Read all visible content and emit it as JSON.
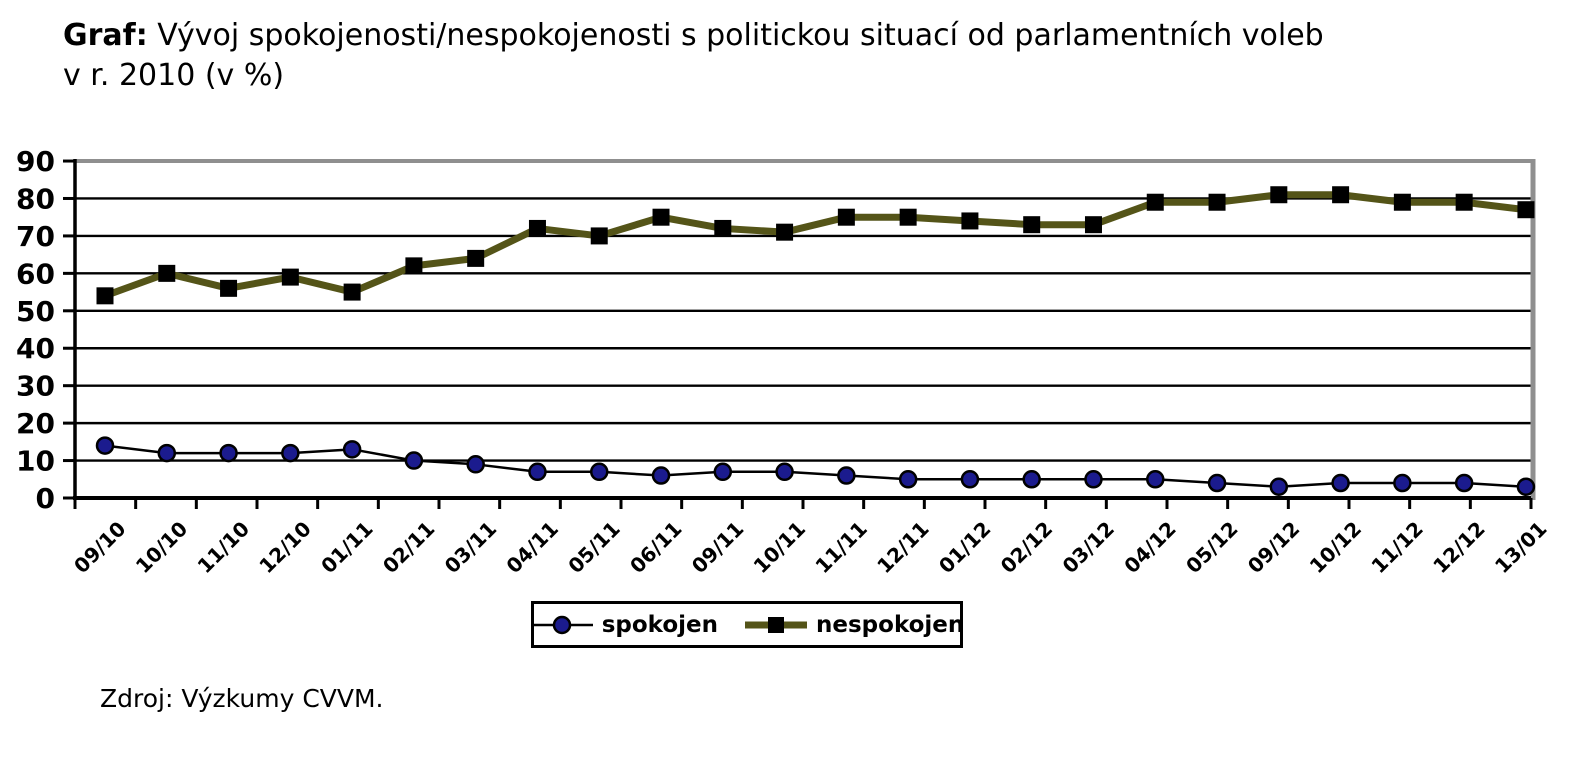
{
  "title": {
    "prefix": "Graf:",
    "line1": "Vývoj spokojenosti/nespokojenosti s politickou situací od parlamentních voleb",
    "line2": "v r. 2010 (v %)"
  },
  "source": "Zdroj: Výzkumy CVVM.",
  "colors": {
    "satisfied_line": "#000000",
    "satisfied_marker": "#1b1b8e",
    "dissatisfied_line": "#545418",
    "dissatisfied_marker": "#000000",
    "grid": "#000000",
    "plot_border_gray": "#8f8f8f"
  },
  "chart_data": {
    "type": "line",
    "categories": [
      "09/10",
      "10/10",
      "11/10",
      "12/10",
      "01/11",
      "02/11",
      "03/11",
      "04/11",
      "05/11",
      "06/11",
      "09/11",
      "10/11",
      "11/11",
      "12/11",
      "01/12",
      "02/12",
      "03/12",
      "04/12",
      "05/12",
      "09/12",
      "10/12",
      "11/12",
      "12/12",
      "13/01"
    ],
    "series": [
      {
        "name": "spokojen",
        "color": "#000000",
        "marker": "circle",
        "marker_color": "#1b1b8e",
        "line_width": 2.5,
        "values": [
          14,
          12,
          12,
          12,
          13,
          10,
          9,
          7,
          7,
          6,
          7,
          7,
          6,
          5,
          5,
          5,
          5,
          5,
          4,
          3,
          4,
          4,
          4,
          3
        ]
      },
      {
        "name": "nespokojen",
        "color": "#545418",
        "marker": "square",
        "marker_color": "#000000",
        "line_width": 7,
        "values": [
          54,
          60,
          56,
          59,
          55,
          62,
          64,
          72,
          70,
          75,
          72,
          71,
          75,
          75,
          74,
          73,
          73,
          79,
          79,
          81,
          81,
          79,
          79,
          77
        ]
      }
    ],
    "title": "Graf: Vývoj spokojenosti/nespokojenosti s politickou situací od parlamentních voleb v r. 2010 (v %)",
    "xlabel": "",
    "ylabel": "",
    "ylim": [
      0,
      90
    ],
    "ytick_step": 10,
    "grid": "horizontal",
    "legend_position": "bottom",
    "x_tick_labels_rotation": -45
  }
}
